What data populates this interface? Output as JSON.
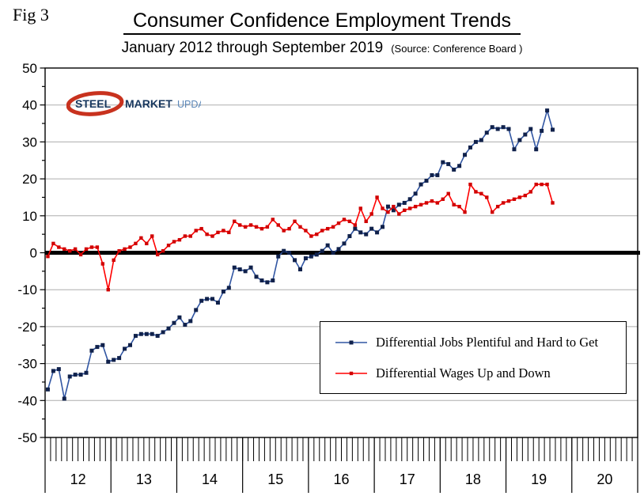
{
  "figure_label": "Fig 3",
  "logo": {
    "steel": "STEEL",
    "market": "MARKET",
    "update": "UPDATE",
    "swoosh_color": "#C8321E",
    "dark_text_color": "#17375E",
    "light_text_color": "#5B87B8"
  },
  "chart_data": {
    "type": "line",
    "title": "Consumer Confidence Employment Trends",
    "subtitle": "January 2012 through September 2019",
    "source": "(Source: Conference Board )",
    "ylim": [
      -50,
      50
    ],
    "yticks": [
      50,
      40,
      30,
      20,
      10,
      0,
      -10,
      -20,
      -30,
      -40,
      -50
    ],
    "x_months_total": 108,
    "x_year_labels": [
      "12",
      "13",
      "14",
      "15",
      "16",
      "17",
      "18",
      "19",
      "20"
    ],
    "grid": true,
    "zero_line_color": "#000000",
    "gridline_color": "#ADADAD",
    "legend_position": "inside-lower-right",
    "series": [
      {
        "name": "Differential Jobs Plentiful and Hard to Get",
        "color": "#3156A3",
        "marker_color": "#10214B",
        "marker": "square",
        "values": [
          -37,
          -32,
          -31.5,
          -39.5,
          -33.5,
          -33,
          -33,
          -32.5,
          -26.5,
          -25.5,
          -25,
          -29.5,
          -29,
          -28.5,
          -26,
          -25,
          -22.5,
          -22,
          -22,
          -22,
          -22.5,
          -21.5,
          -20.5,
          -19,
          -17.5,
          -19.5,
          -18.5,
          -15.5,
          -13,
          -12.5,
          -12.5,
          -13.5,
          -10.5,
          -9.5,
          -4,
          -4.5,
          -5,
          -4,
          -6.5,
          -7.5,
          -8,
          -7.5,
          -1,
          0.5,
          0,
          -2,
          -4.5,
          -1.5,
          -1,
          -0.5,
          0.5,
          2,
          0,
          1,
          2.5,
          4.5,
          6.5,
          5.5,
          5,
          6.5,
          5.5,
          7,
          12.5,
          11.5,
          13,
          13.5,
          14.5,
          16,
          18.5,
          19.5,
          21,
          21,
          24.5,
          24,
          22.5,
          23.5,
          26.5,
          28.5,
          30,
          30.5,
          32.5,
          34,
          33.5,
          34,
          33.5,
          28,
          30.5,
          32,
          33.5,
          28,
          33,
          38.5,
          33.3
        ]
      },
      {
        "name": "Differential Wages Up and Down",
        "color": "#FF0000",
        "marker_color": "#D00000",
        "marker": "square",
        "values": [
          -1,
          2.5,
          1.5,
          1,
          0.5,
          1,
          -0.5,
          1,
          1.5,
          1.5,
          -3,
          -10,
          -2,
          0.5,
          1,
          1.5,
          2.5,
          4,
          2.5,
          4.5,
          -0.5,
          0.5,
          2,
          3,
          3.5,
          4.5,
          4.5,
          6,
          6.5,
          5,
          4.5,
          5.5,
          6,
          5.5,
          8.5,
          7.5,
          7,
          7.5,
          7,
          6.5,
          7,
          9,
          7.5,
          6,
          6.5,
          8.5,
          7,
          6,
          4.5,
          5,
          6,
          6.5,
          7,
          8,
          9,
          8.5,
          7.5,
          12,
          8.5,
          10.5,
          15,
          12,
          11,
          12.5,
          10.5,
          11.5,
          12,
          12.5,
          13,
          13.5,
          14,
          13.5,
          14.5,
          16,
          13,
          12.5,
          11,
          18.5,
          16.5,
          16,
          15,
          11,
          12.5,
          13.5,
          14,
          14.5,
          15,
          15.5,
          16.5,
          18.5,
          18.5,
          18.5,
          13.5
        ]
      }
    ]
  }
}
